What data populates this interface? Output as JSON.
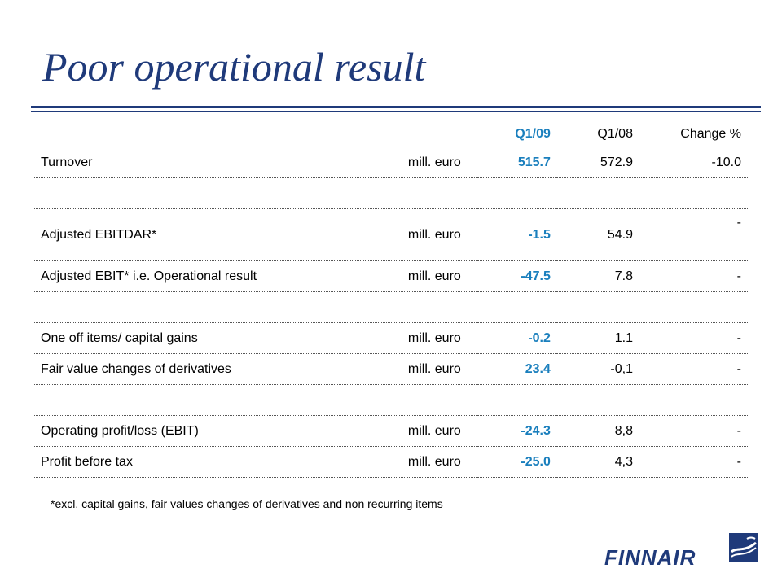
{
  "title": "Poor operational result",
  "table": {
    "headers": {
      "label": "",
      "unit": "",
      "q1_09": "Q1/09",
      "q1_08": "Q1/08",
      "change": "Change %"
    },
    "rows": [
      {
        "label": "Turnover",
        "unit": "mill. euro",
        "q1_09": "515.7",
        "q1_08": "572.9",
        "change": "-10.0"
      },
      {
        "label": "",
        "unit": "",
        "q1_09": "",
        "q1_08": "",
        "change": ""
      },
      {
        "label": "Adjusted EBITDAR*",
        "unit": "mill. euro",
        "q1_09": "-1.5",
        "q1_08": "54.9",
        "change": "-"
      },
      {
        "label": "Adjusted EBIT* i.e. Operational result",
        "unit": "mill. euro",
        "q1_09": "-47.5",
        "q1_08": "7.8",
        "change": "-"
      },
      {
        "label": "",
        "unit": "",
        "q1_09": "",
        "q1_08": "",
        "change": ""
      },
      {
        "label": "One off items/ capital gains",
        "unit": "mill. euro",
        "q1_09": "-0.2",
        "q1_08": "1.1",
        "change": "-"
      },
      {
        "label": "Fair value changes of derivatives",
        "unit": "mill. euro",
        "q1_09": "23.4",
        "q1_08": "-0,1",
        "change": "-"
      },
      {
        "label": "",
        "unit": "",
        "q1_09": "",
        "q1_08": "",
        "change": ""
      },
      {
        "label": "Operating profit/loss (EBIT)",
        "unit": "mill. euro",
        "q1_09": "-24.3",
        "q1_08": "8,8",
        "change": "-"
      },
      {
        "label": "Profit before tax",
        "unit": "mill. euro",
        "q1_09": "-25.0",
        "q1_08": "4,3",
        "change": "-"
      }
    ]
  },
  "footnote": "*excl. capital gains, fair values changes of derivatives and non recurring items",
  "logo": {
    "text": "FINNAIR",
    "icon": "finnair-flag-icon"
  },
  "colors": {
    "title": "#1f3a7a",
    "highlight": "#1a7fbd",
    "rule": "#1f3a7a"
  }
}
